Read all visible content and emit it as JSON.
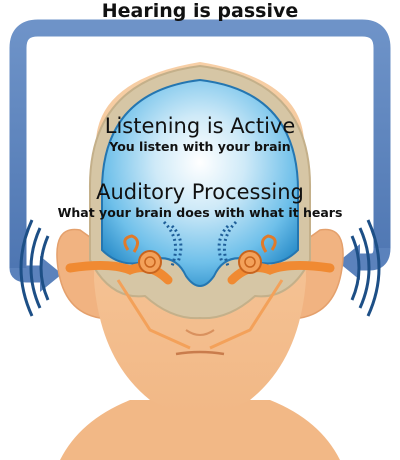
{
  "title": "Hearing is passive",
  "active": {
    "heading": "Listening is Active",
    "subheading": "You listen with your brain"
  },
  "processing": {
    "heading": "Auditory Processing",
    "subheading": "What your brain does with what it hears"
  },
  "colors": {
    "arrow": "#5b82bc",
    "skin": "#f4bf8e",
    "skull": "#d6c6a5",
    "brain": "#3fa7dc",
    "ear_canal": "#f08a32",
    "sound_waves": "#1f5f99"
  }
}
